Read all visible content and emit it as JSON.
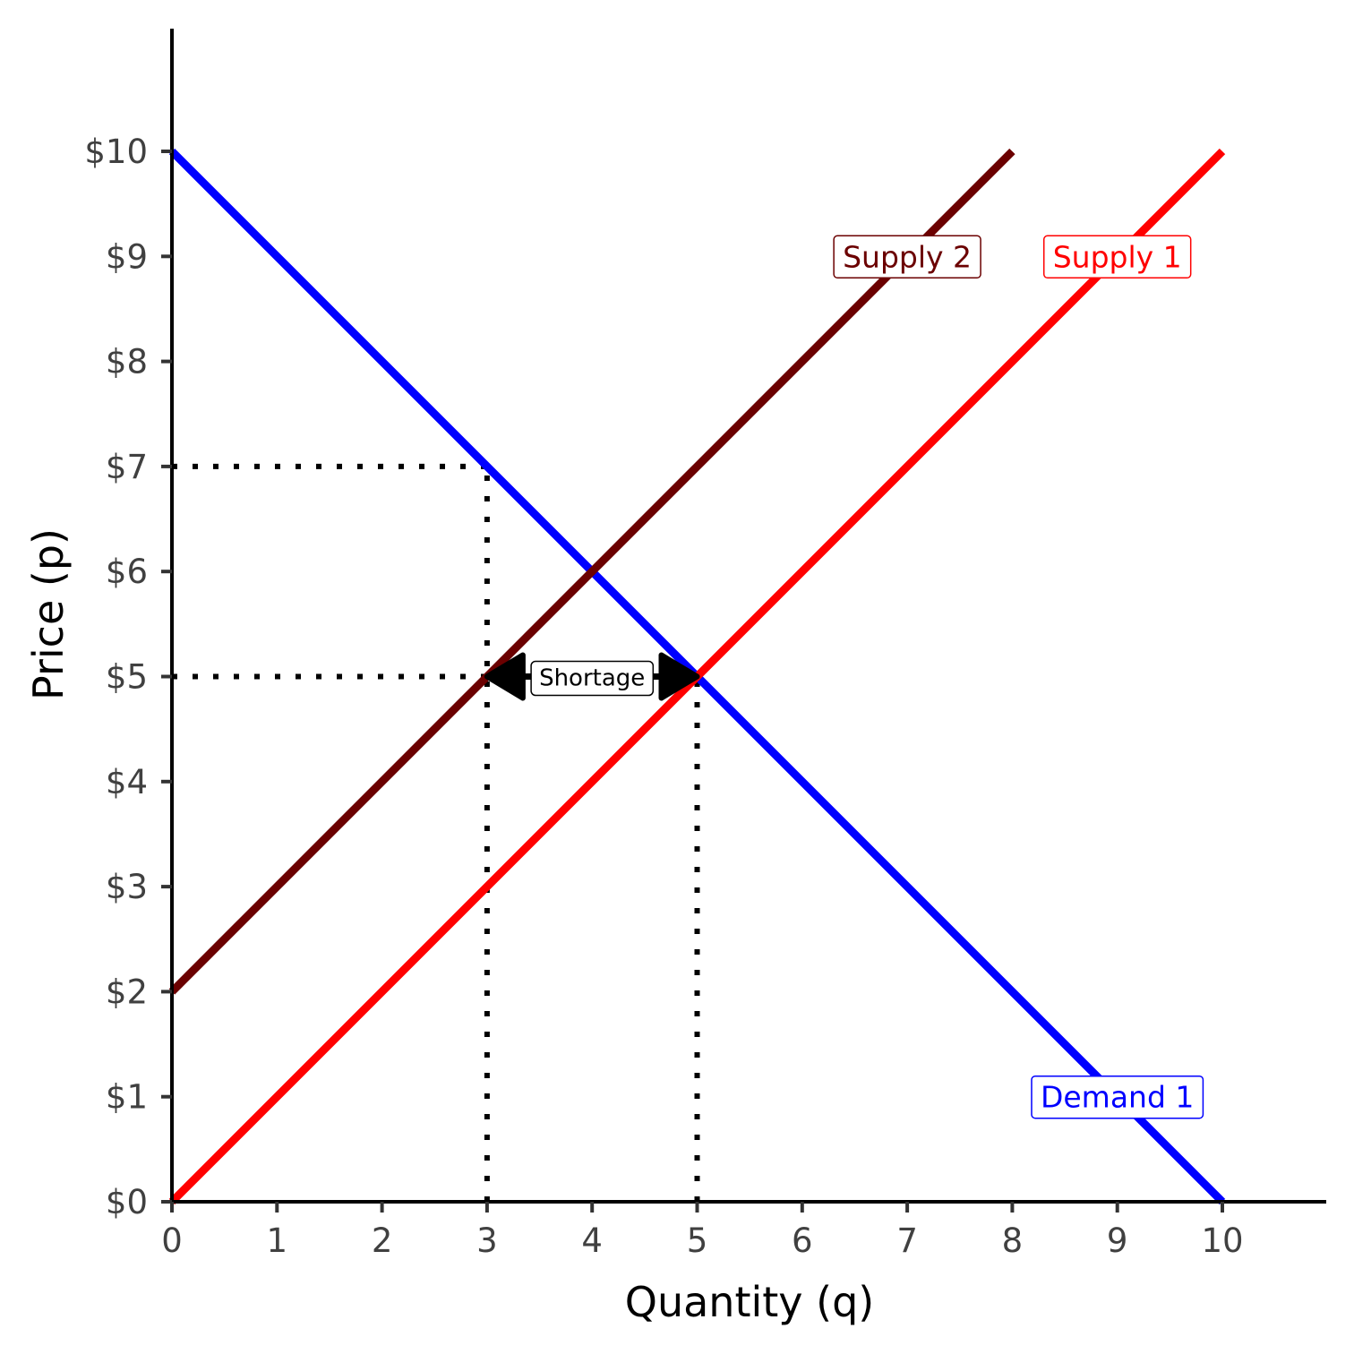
{
  "chart_data": {
    "type": "line",
    "xlabel": "Quantity (q)",
    "ylabel": "Price (p)",
    "xlim": [
      0,
      11
    ],
    "ylim": [
      0,
      11
    ],
    "x_ticks": [
      0,
      1,
      2,
      3,
      4,
      5,
      6,
      7,
      8,
      9,
      10
    ],
    "y_ticks": [
      0,
      1,
      2,
      3,
      4,
      5,
      6,
      7,
      8,
      9,
      10
    ],
    "x_tick_labels": [
      "0",
      "1",
      "2",
      "3",
      "4",
      "5",
      "6",
      "7",
      "8",
      "9",
      "10"
    ],
    "y_tick_labels": [
      "$0",
      "$1",
      "$2",
      "$3",
      "$4",
      "$5",
      "$6",
      "$7",
      "$8",
      "$9",
      "$10"
    ],
    "series": [
      {
        "name": "Demand 1",
        "color": "#0000ff",
        "x": [
          0,
          10
        ],
        "y": [
          10,
          0
        ],
        "label_at": [
          9,
          1
        ]
      },
      {
        "name": "Supply 1",
        "color": "#ff0000",
        "x": [
          0,
          10
        ],
        "y": [
          0,
          10
        ],
        "label_at": [
          9,
          9
        ]
      },
      {
        "name": "Supply 2",
        "color": "#6b0000",
        "x": [
          0,
          8
        ],
        "y": [
          2,
          10
        ],
        "label_at": [
          7,
          9
        ]
      }
    ],
    "reference_lines": [
      {
        "from": [
          0,
          7
        ],
        "to": [
          3,
          7
        ]
      },
      {
        "from": [
          3,
          0
        ],
        "to": [
          3,
          7
        ]
      },
      {
        "from": [
          0,
          5
        ],
        "to": [
          3,
          5
        ]
      },
      {
        "from": [
          5,
          0
        ],
        "to": [
          5,
          5
        ]
      }
    ],
    "annotations": [
      {
        "text": "Shortage",
        "x_from": 3,
        "x_to": 5,
        "y": 5
      }
    ]
  }
}
